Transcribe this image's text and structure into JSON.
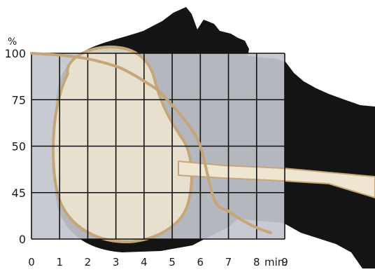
{
  "colors": {
    "silhouette": "#141414",
    "grid_panel": "#c3c6cd",
    "brain_fill": "#efe6d2",
    "curve": "#c5a678",
    "grid_line": "#111111"
  },
  "chart_data": {
    "type": "line",
    "title": "",
    "xlabel": "",
    "ylabel": "%",
    "x_unit_label": "min.",
    "x_ticks": [
      0,
      1,
      2,
      3,
      4,
      5,
      6,
      7,
      8,
      9
    ],
    "y_tick_labels": [
      "100",
      "75",
      "50",
      "45",
      "0"
    ],
    "grid": true,
    "xlim": [
      0,
      9
    ],
    "series": [
      {
        "x": [
          0,
          1,
          2,
          3,
          3.5,
          4,
          4.5,
          5,
          5.5,
          6,
          6.5,
          7,
          7.5,
          8,
          8.5
        ],
        "y": [
          100,
          99,
          97,
          93,
          89.5,
          85,
          80,
          72,
          63,
          50,
          38,
          27,
          18,
          11,
          6
        ]
      }
    ]
  }
}
